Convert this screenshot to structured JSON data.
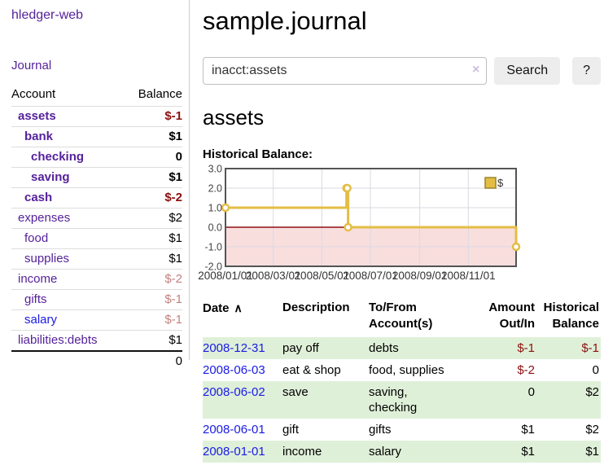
{
  "app": {
    "brand": "hledger-web"
  },
  "nav": {
    "journal": "Journal"
  },
  "sidebar": {
    "header": {
      "account": "Account",
      "balance": "Balance"
    },
    "accounts": [
      {
        "name": "assets",
        "balance": "$-1"
      },
      {
        "name": "bank",
        "balance": "$1"
      },
      {
        "name": "checking",
        "balance": "0"
      },
      {
        "name": "saving",
        "balance": "$1"
      },
      {
        "name": "cash",
        "balance": "$-2"
      },
      {
        "name": "expenses",
        "balance": "$2"
      },
      {
        "name": "food",
        "balance": "$1"
      },
      {
        "name": "supplies",
        "balance": "$1"
      },
      {
        "name": "income",
        "balance": "$-2"
      },
      {
        "name": "gifts",
        "balance": "$-1"
      },
      {
        "name": "salary",
        "balance": "$-1"
      },
      {
        "name": "liabilities:debts",
        "balance": "$1"
      }
    ],
    "total": "0"
  },
  "main": {
    "title": "sample.journal",
    "account_heading": "assets",
    "chart_heading": "Historical Balance:"
  },
  "search": {
    "value": "inacct:assets",
    "clear_icon": "×",
    "search_label": "Search",
    "help_label": "?"
  },
  "colors": {
    "link_purple": "#55229b",
    "link_blue": "#1a1ae6",
    "negative_red": "#8e0f0f",
    "negative_light": "#c2807e",
    "row_green": "#dff0d8",
    "series_gold": "#e4bd45",
    "negative_area_pink": "#f9dede"
  },
  "chart_data": {
    "type": "line",
    "step": true,
    "title": "Historical Balance:",
    "series": [
      {
        "name": "$",
        "color": "#e4bd45",
        "points": [
          [
            "2008-01-01",
            1
          ],
          [
            "2008-06-01",
            2
          ],
          [
            "2008-06-02",
            2
          ],
          [
            "2008-06-03",
            0
          ],
          [
            "2008-12-31",
            -1
          ]
        ]
      }
    ],
    "xrange": [
      "2008-01-01",
      "2008-12-31"
    ],
    "ylim": [
      -2,
      3
    ],
    "yticks": [
      3,
      2,
      1,
      0,
      -1,
      -2
    ],
    "ytick_labels": [
      "3.0",
      "2.0",
      "1.0",
      "0.0",
      "-1.0",
      "-2.0"
    ],
    "xtick_dates": [
      "2008-01-01",
      "2008-03-01",
      "2008-05-01",
      "2008-07-01",
      "2008-09-01",
      "2008-11-01"
    ],
    "xtick_labels": [
      "2008/01/01",
      "2008/03/01",
      "2008/05/01",
      "2008/07/01",
      "2008/09/01",
      "2008/11/01"
    ],
    "legend_position": "top-right",
    "grid": true,
    "grid_color": "#d9d9e2",
    "zero_line_color": "#8e1111",
    "negative_fill": "#f9dede"
  },
  "register": {
    "headers": {
      "date": "Date",
      "sort_icon": "∧",
      "description": "Description",
      "accounts_line1": "To/From",
      "accounts_line2": "Account(s)",
      "amount_line1": "Amount",
      "amount_line2": "Out/In",
      "balance_line1": "Historical",
      "balance_line2": "Balance"
    },
    "rows": [
      {
        "date": "2008-12-31",
        "description": "pay off",
        "accounts": "debts",
        "amount": "$-1",
        "balance": "$-1"
      },
      {
        "date": "2008-06-03",
        "description": "eat & shop",
        "accounts": "food, supplies",
        "amount": "$-2",
        "balance": "0"
      },
      {
        "date": "2008-06-02",
        "description": "save",
        "accounts": "saving,\nchecking",
        "amount": "0",
        "balance": "$2"
      },
      {
        "date": "2008-06-01",
        "description": "gift",
        "accounts": "gifts",
        "amount": "$1",
        "balance": "$2"
      },
      {
        "date": "2008-01-01",
        "description": "income",
        "accounts": "salary",
        "amount": "$1",
        "balance": "$1"
      }
    ]
  }
}
